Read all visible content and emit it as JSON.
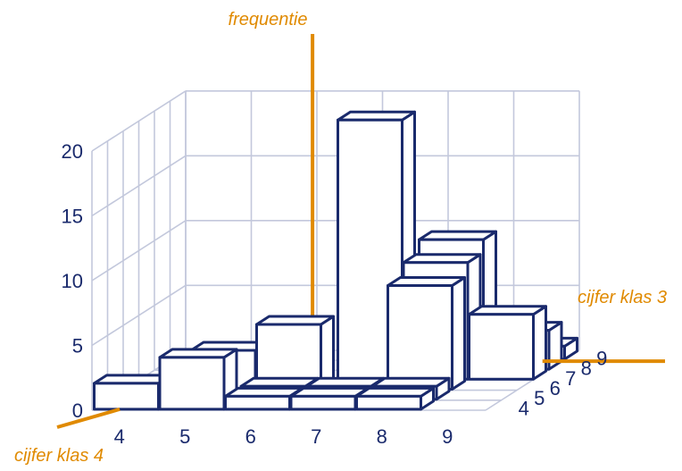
{
  "colors": {
    "axis": "#E08A00",
    "bars": "#1A2A6C",
    "grid": "#C3C8DC",
    "text": "#1A2A6C",
    "background": "#FFFFFF"
  },
  "chart_data": {
    "type": "bar3d",
    "x_axis_label": "cijfer klas 4",
    "y_axis_label": "cijfer klas 3",
    "z_axis_label": "frequentie",
    "x_categories": [
      "4",
      "5",
      "6",
      "7",
      "8",
      "9"
    ],
    "y_categories": [
      "4",
      "5",
      "6",
      "7",
      "8",
      "9"
    ],
    "z_ticks": [
      "0",
      "5",
      "10",
      "15",
      "20"
    ],
    "zlim": [
      0,
      20
    ],
    "grid": true,
    "bars": [
      {
        "x": "4",
        "y": "4",
        "value": 2
      },
      {
        "x": "5",
        "y": "4",
        "value": 4
      },
      {
        "x": "6",
        "y": "4",
        "value": 1
      },
      {
        "x": "7",
        "y": "4",
        "value": 1
      },
      {
        "x": "8",
        "y": "4",
        "value": 1
      },
      {
        "x": "6",
        "y": "5",
        "value": 1
      },
      {
        "x": "7",
        "y": "5",
        "value": 1
      },
      {
        "x": "8",
        "y": "5",
        "value": 1
      },
      {
        "x": "5",
        "y": "6",
        "value": 3
      },
      {
        "x": "6",
        "y": "6",
        "value": 5
      },
      {
        "x": "8",
        "y": "6",
        "value": 8
      },
      {
        "x": "7",
        "y": "7",
        "value": 20
      },
      {
        "x": "8",
        "y": "7",
        "value": 9
      },
      {
        "x": "9",
        "y": "7",
        "value": 5
      },
      {
        "x": "8",
        "y": "8",
        "value": 10
      },
      {
        "x": "9",
        "y": "8",
        "value": 3
      },
      {
        "x": "9",
        "y": "9",
        "value": 1
      }
    ]
  }
}
